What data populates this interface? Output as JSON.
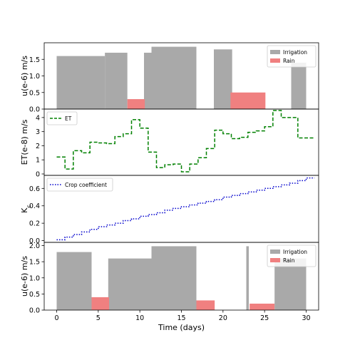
{
  "chart_data": [
    {
      "type": "bar",
      "ylabel": "u(e-6) m/s",
      "ylim": [
        0,
        2.0
      ],
      "yticks": [
        0.0,
        0.5,
        1.0,
        1.5
      ],
      "legend": {
        "placement": "top-right",
        "entries": [
          "Irrigation",
          "Rain"
        ]
      },
      "series": [
        {
          "name": "Irrigation",
          "color": "#a9a9a9",
          "bars": [
            {
              "x0": 0,
              "x1": 5.8,
              "value": 1.6
            },
            {
              "x0": 5.8,
              "x1": 8.5,
              "value": 1.7
            },
            {
              "x0": 10.5,
              "x1": 11.4,
              "value": 1.7
            },
            {
              "x0": 11.4,
              "x1": 16.8,
              "value": 1.88
            },
            {
              "x0": 18.9,
              "x1": 21.1,
              "value": 1.8
            },
            {
              "x0": 28.2,
              "x1": 30,
              "value": 1.4
            }
          ]
        },
        {
          "name": "Rain",
          "color": "#f08080",
          "bars": [
            {
              "x0": 8.5,
              "x1": 10.6,
              "value": 0.3
            },
            {
              "x0": 20.9,
              "x1": 25.1,
              "value": 0.5
            }
          ]
        }
      ]
    },
    {
      "type": "line",
      "ylabel": "ET(e-8) m/s",
      "ylim": [
        -0.1,
        4.6
      ],
      "yticks": [
        0,
        1,
        2,
        3,
        4
      ],
      "legend": {
        "placement": "top-left",
        "entries": [
          "ET"
        ]
      },
      "series": [
        {
          "name": "ET",
          "color": "#008000",
          "style": "dashed-steps",
          "x": [
            0,
            1,
            2,
            3,
            4,
            5,
            6,
            7,
            8,
            9,
            10,
            11,
            12,
            13,
            14,
            15,
            16,
            17,
            18,
            19,
            20,
            21,
            22,
            23,
            24,
            25,
            26,
            27,
            28,
            29,
            30
          ],
          "y": [
            1.2,
            0.35,
            1.65,
            1.5,
            2.25,
            2.2,
            2.15,
            2.65,
            2.85,
            3.85,
            3.25,
            1.55,
            0.45,
            0.65,
            0.7,
            0.15,
            0.7,
            1.15,
            1.8,
            3.1,
            2.85,
            2.5,
            2.6,
            2.95,
            3.05,
            3.35,
            4.5,
            4.0,
            4.0,
            2.55,
            2.55
          ]
        }
      ]
    },
    {
      "type": "line",
      "ylabel": "K_c",
      "ylim": [
        -0.02,
        0.75
      ],
      "yticks": [
        0.0,
        0.2,
        0.4,
        0.6
      ],
      "legend": {
        "placement": "top-left",
        "entries": [
          "Crop coefficient"
        ]
      },
      "series": [
        {
          "name": "Crop coefficient",
          "color": "#0000cd",
          "style": "dotted-steps",
          "x": [
            0,
            1,
            2,
            3,
            4,
            5,
            6,
            7,
            8,
            9,
            10,
            11,
            12,
            13,
            14,
            15,
            16,
            17,
            18,
            19,
            20,
            21,
            22,
            23,
            24,
            25,
            26,
            27,
            28,
            29,
            30
          ],
          "y": [
            0.01,
            0.04,
            0.07,
            0.1,
            0.13,
            0.16,
            0.18,
            0.2,
            0.23,
            0.25,
            0.28,
            0.3,
            0.32,
            0.35,
            0.37,
            0.39,
            0.41,
            0.43,
            0.45,
            0.47,
            0.5,
            0.52,
            0.54,
            0.56,
            0.58,
            0.6,
            0.62,
            0.64,
            0.66,
            0.69,
            0.72
          ]
        }
      ]
    },
    {
      "type": "bar",
      "ylabel": "u(e-6) m/s",
      "xlabel": "Time (days)",
      "xlim": [
        -1.5,
        31.5
      ],
      "xticks": [
        0,
        5,
        10,
        15,
        20,
        25,
        30
      ],
      "ylim": [
        0,
        2.1
      ],
      "yticks": [
        0.0,
        0.5,
        1.0,
        1.5,
        2.0
      ],
      "legend": {
        "placement": "top-right",
        "entries": [
          "Irrigation",
          "Rain"
        ]
      },
      "series": [
        {
          "name": "Irrigation",
          "color": "#a9a9a9",
          "bars": [
            {
              "x0": 0,
              "x1": 4.2,
              "value": 1.8
            },
            {
              "x0": 6.2,
              "x1": 11.4,
              "value": 1.6
            },
            {
              "x0": 11.4,
              "x1": 16.8,
              "value": 1.98
            },
            {
              "x0": 22.8,
              "x1": 23.1,
              "value": 1.98
            },
            {
              "x0": 26.2,
              "x1": 30.0,
              "value": 1.6
            }
          ]
        },
        {
          "name": "Rain",
          "color": "#f08080",
          "bars": [
            {
              "x0": 4.2,
              "x1": 6.3,
              "value": 0.4
            },
            {
              "x0": 16.8,
              "x1": 19.0,
              "value": 0.3
            },
            {
              "x0": 23.2,
              "x1": 26.2,
              "value": 0.2
            }
          ]
        }
      ]
    }
  ]
}
